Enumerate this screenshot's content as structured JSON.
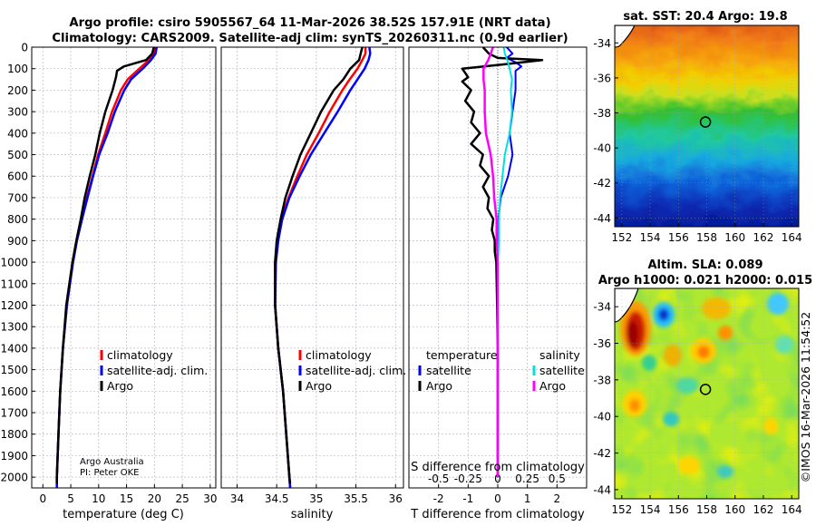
{
  "header": {
    "title_line1": "Argo profile: csiro 5905567_64 11-Mar-2026 38.52S 157.91E (NRT data)",
    "title_line2": "Climatology: CARS2009. Satellite-adj clim: synTS_20260311.nc (0.9d earlier)"
  },
  "credit": {
    "line1": "Argo Australia",
    "line2": "PI: Peter OKE",
    "stamp": "©IMOS 16-Mar-2026 11:54:52"
  },
  "colors": {
    "climatology": "#ff0000",
    "satellite_adj": "#0000ff",
    "argo": "#000000",
    "satellite": "#00e0e0",
    "argo_salinity": "#ff00ff"
  },
  "chart_data": [
    {
      "id": "temperature",
      "type": "line",
      "xlabel": "temperature (deg C)",
      "ylabel": "",
      "xlim": [
        -2,
        31
      ],
      "ylim": [
        2050,
        0
      ],
      "xticks": [
        0,
        5,
        10,
        15,
        20,
        25,
        30
      ],
      "xticklabels": [
        "0",
        "5",
        "10",
        "15",
        "20",
        "25",
        "30"
      ],
      "yticks": [
        0,
        100,
        200,
        300,
        400,
        500,
        600,
        700,
        800,
        900,
        1000,
        1100,
        1200,
        1300,
        1400,
        1500,
        1600,
        1700,
        1800,
        1900,
        2000
      ],
      "yticklabels": [
        "0",
        "100",
        "200",
        "300",
        "400",
        "500",
        "600",
        "700",
        "800",
        "900",
        "1000",
        "1100",
        "1200",
        "1300",
        "1400",
        "1500",
        "1600",
        "1700",
        "1800",
        "1900",
        "2000"
      ],
      "grid": true,
      "legend": {
        "position": "lower-right",
        "entries": [
          "climatology",
          "satellite-adj. clim.",
          "Argo"
        ]
      },
      "series": [
        {
          "name": "climatology",
          "color": "#ff0000",
          "width": 2.5,
          "depth": [
            0,
            30,
            60,
            100,
            150,
            200,
            300,
            400,
            500,
            600,
            700,
            800,
            900,
            1000,
            1200,
            1400,
            1600,
            1800,
            2000,
            2050
          ],
          "values": [
            20.1,
            19.9,
            19.0,
            17.3,
            15.2,
            14.0,
            12.4,
            11.2,
            9.9,
            8.9,
            7.9,
            7.0,
            6.1,
            5.4,
            4.3,
            3.6,
            3.1,
            2.8,
            2.5,
            2.5
          ]
        },
        {
          "name": "satellite-adj. clim.",
          "color": "#0000ff",
          "width": 2.5,
          "depth": [
            0,
            30,
            60,
            100,
            150,
            200,
            300,
            400,
            500,
            600,
            700,
            800,
            900,
            1000,
            1200,
            1400,
            1600,
            1800,
            2000,
            2050
          ],
          "values": [
            20.4,
            20.2,
            19.4,
            17.9,
            15.8,
            14.6,
            12.9,
            11.6,
            10.1,
            9.0,
            8.0,
            7.0,
            6.1,
            5.4,
            4.3,
            3.6,
            3.1,
            2.8,
            2.5,
            2.5
          ]
        },
        {
          "name": "Argo",
          "color": "#000000",
          "width": 2.5,
          "depth": [
            0,
            30,
            60,
            90,
            110,
            140,
            200,
            300,
            400,
            500,
            600,
            700,
            800,
            900,
            1000,
            1200,
            1400,
            1600,
            1800,
            2000,
            2030
          ],
          "values": [
            19.9,
            19.6,
            18.5,
            14.5,
            13.3,
            13.1,
            12.5,
            11.2,
            10.2,
            9.4,
            8.4,
            7.5,
            6.8,
            6.0,
            5.3,
            4.2,
            3.6,
            3.1,
            2.8,
            2.5,
            2.5
          ]
        }
      ]
    },
    {
      "id": "salinity",
      "type": "line",
      "xlabel": "salinity",
      "ylabel": "",
      "xlim": [
        33.8,
        36.1
      ],
      "ylim": [
        2050,
        0
      ],
      "xticks": [
        34,
        34.5,
        35,
        35.5,
        36
      ],
      "xticklabels": [
        "34",
        "34.5",
        "35",
        "35.5",
        "36"
      ],
      "grid": true,
      "legend": {
        "position": "lower-right",
        "entries": [
          "climatology",
          "satellite-adj. clim.",
          "Argo"
        ]
      },
      "series": [
        {
          "name": "climatology",
          "color": "#ff0000",
          "width": 2.5,
          "depth": [
            0,
            30,
            60,
            100,
            150,
            200,
            300,
            400,
            500,
            600,
            700,
            800,
            900,
            1000,
            1200,
            1400,
            1600,
            1800,
            2000,
            2050
          ],
          "values": [
            35.62,
            35.62,
            35.58,
            35.52,
            35.42,
            35.33,
            35.17,
            35.03,
            34.88,
            34.76,
            34.65,
            34.56,
            34.51,
            34.48,
            34.48,
            34.52,
            34.58,
            34.62,
            34.66,
            34.67
          ]
        },
        {
          "name": "satellite-adj. clim.",
          "color": "#0000ff",
          "width": 2.5,
          "depth": [
            0,
            30,
            60,
            100,
            150,
            200,
            300,
            400,
            500,
            600,
            700,
            800,
            900,
            1000,
            1200,
            1400,
            1600,
            1800,
            2000,
            2050
          ],
          "values": [
            35.67,
            35.68,
            35.66,
            35.61,
            35.52,
            35.43,
            35.27,
            35.1,
            34.93,
            34.79,
            34.66,
            34.57,
            34.52,
            34.49,
            34.48,
            34.52,
            34.58,
            34.62,
            34.66,
            34.67
          ]
        },
        {
          "name": "Argo",
          "color": "#000000",
          "width": 2.5,
          "depth": [
            0,
            30,
            60,
            100,
            150,
            200,
            300,
            400,
            500,
            600,
            700,
            800,
            900,
            1000,
            1200,
            1400,
            1600,
            1800,
            2000,
            2030
          ],
          "values": [
            35.58,
            35.56,
            35.54,
            35.43,
            35.34,
            35.22,
            35.06,
            34.93,
            34.8,
            34.7,
            34.61,
            34.55,
            34.5,
            34.48,
            34.48,
            34.52,
            34.58,
            34.62,
            34.66,
            34.67
          ]
        }
      ]
    },
    {
      "id": "difference",
      "type": "line",
      "xlabel": "T difference from climatology",
      "xlabel_top": "S difference from climatology",
      "xlim": [
        -3,
        3
      ],
      "ylim": [
        2050,
        0
      ],
      "xticks": [
        -2,
        -1,
        0,
        1,
        2
      ],
      "xticklabels": [
        "-2",
        "-1",
        "0",
        "1",
        "2"
      ],
      "xticks_top": [
        -0.5,
        -0.25,
        0,
        0.25,
        0.5
      ],
      "xticklabels_top": [
        "-0.5",
        "-0.25",
        "0",
        "0.25",
        "0.5"
      ],
      "grid": true,
      "legend_left": {
        "title": "temperature",
        "entries": [
          "satellite",
          "Argo"
        ]
      },
      "legend_right": {
        "title": "salinity",
        "entries": [
          "satellite",
          "Argo"
        ]
      },
      "series": [
        {
          "name": "T satellite",
          "color": "#0000ff",
          "width": 2,
          "depth": [
            0,
            30,
            50,
            70,
            90,
            110,
            150,
            200,
            300,
            400,
            500,
            600,
            700,
            800,
            900,
            1000,
            1200,
            1400,
            1600,
            1800,
            2000
          ],
          "values": [
            0.3,
            0.5,
            0.3,
            0.6,
            0.8,
            0.6,
            0.6,
            0.6,
            0.5,
            0.4,
            0.5,
            0.35,
            0.1,
            0.02,
            0.01,
            0.0,
            0.0,
            0.0,
            0.0,
            0.0,
            0.0
          ]
        },
        {
          "name": "T Argo",
          "color": "#000000",
          "width": 2.5,
          "depth": [
            0,
            30,
            50,
            60,
            80,
            100,
            120,
            140,
            160,
            200,
            250,
            300,
            350,
            400,
            450,
            500,
            550,
            600,
            650,
            700,
            750,
            800,
            850,
            900,
            950,
            1000,
            1200,
            1400,
            1600,
            1800,
            2000
          ],
          "values": [
            -0.5,
            -0.3,
            0.0,
            1.5,
            0.2,
            -1.2,
            -1.1,
            -1.0,
            -1.2,
            -0.9,
            -1.1,
            -0.8,
            -0.9,
            -0.6,
            -0.9,
            -0.5,
            -0.6,
            -0.3,
            -0.5,
            -0.3,
            -0.35,
            -0.15,
            -0.2,
            -0.1,
            -0.1,
            -0.05,
            -0.02,
            0.0,
            0.0,
            0.0,
            0.0
          ]
        },
        {
          "name": "S satellite",
          "color": "#00e0e0",
          "width": 2,
          "depth": [
            0,
            30,
            60,
            100,
            150,
            200,
            300,
            400,
            500,
            600,
            700,
            800,
            900,
            1000,
            1200,
            1400,
            1600,
            1800,
            2000
          ],
          "values": [
            0.05,
            0.06,
            0.08,
            0.1,
            0.12,
            0.11,
            0.12,
            0.1,
            0.06,
            0.04,
            0.02,
            0.01,
            0.01,
            0.0,
            0.0,
            0.0,
            0.0,
            0.0,
            0.0
          ]
        },
        {
          "name": "S Argo",
          "color": "#ff00ff",
          "width": 2.5,
          "depth": [
            0,
            30,
            60,
            100,
            150,
            200,
            300,
            400,
            500,
            600,
            700,
            800,
            900,
            1000,
            1200,
            1400,
            1600,
            1800,
            2000
          ],
          "values": [
            -0.04,
            -0.06,
            -0.08,
            -0.12,
            -0.12,
            -0.11,
            -0.11,
            -0.1,
            -0.06,
            -0.04,
            -0.03,
            -0.01,
            -0.01,
            0.0,
            0.0,
            0.0,
            0.0,
            0.0,
            0.0
          ]
        }
      ]
    },
    {
      "id": "sst_map",
      "type": "heatmap",
      "title": "sat. SST: 20.4 Argo: 19.8",
      "xlim": [
        151.5,
        164.5
      ],
      "ylim": [
        -44.5,
        -33.0
      ],
      "xticks": [
        152,
        154,
        156,
        158,
        160,
        162,
        164
      ],
      "xticklabels": [
        "152",
        "154",
        "156",
        "158",
        "160",
        "162",
        "164"
      ],
      "yticks": [
        -34,
        -36,
        -38,
        -40,
        -42,
        -44
      ],
      "yticklabels": [
        "-34",
        "-36",
        "-38",
        "-40",
        "-42",
        "-44"
      ],
      "marker": {
        "lon": 157.91,
        "lat": -38.52
      },
      "grid": true
    },
    {
      "id": "sla_map",
      "type": "heatmap",
      "title": "Altim. SLA: 0.089",
      "subtitle": "Argo h1000: 0.021 h2000: 0.015",
      "xlim": [
        151.5,
        164.5
      ],
      "ylim": [
        -44.5,
        -33.0
      ],
      "xticks": [
        152,
        154,
        156,
        158,
        160,
        162,
        164
      ],
      "xticklabels": [
        "152",
        "154",
        "156",
        "158",
        "160",
        "162",
        "164"
      ],
      "yticks": [
        -34,
        -36,
        -38,
        -40,
        -42,
        -44
      ],
      "yticklabels": [
        "-34",
        "-36",
        "-38",
        "-40",
        "-42",
        "-44"
      ],
      "marker": {
        "lon": 157.91,
        "lat": -38.52
      },
      "grid": true
    }
  ]
}
